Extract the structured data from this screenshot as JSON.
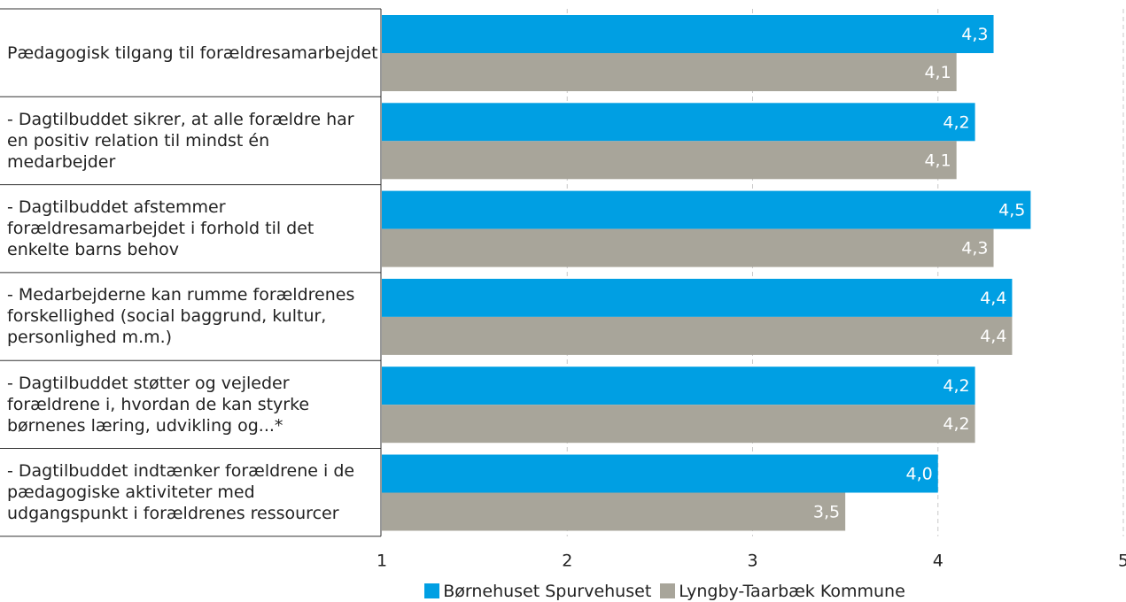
{
  "chart_data": {
    "type": "bar",
    "orientation": "horizontal",
    "categories": [
      "Pædagogisk tilgang til forældresamarbejdet",
      "- Dagtilbuddet sikrer, at alle forældre har en positiv relation til mindst én medarbejder",
      "- Dagtilbuddet afstemmer forældresamarbejdet i forhold til det enkelte barns behov",
      "- Medarbejderne kan rumme forældrenes forskellighed (social baggrund, kultur, personlighed m.m.)",
      "- Dagtilbuddet støtter og vejleder forældrene i, hvordan de kan styrke børnenes læring, udvikling og...*",
      "- Dagtilbuddet indtænker forældrene i de pædagogiske aktiviteter med udgangspunkt i forældrenes ressourcer"
    ],
    "series": [
      {
        "name": "Børnehuset Spurvehuset",
        "color": "#009fe3",
        "values": [
          4.3,
          4.2,
          4.5,
          4.4,
          4.2,
          4.0
        ],
        "value_labels": [
          "4,3",
          "4,2",
          "4,5",
          "4,4",
          "4,2",
          "4,0"
        ]
      },
      {
        "name": "Lyngby-Taarbæk Kommune",
        "color": "#a8a59a",
        "values": [
          4.1,
          4.1,
          4.3,
          4.4,
          4.2,
          3.5
        ],
        "value_labels": [
          "4,1",
          "4,1",
          "4,3",
          "4,4",
          "4,2",
          "3,5"
        ]
      }
    ],
    "xlim": [
      1,
      5
    ],
    "xticks": [
      1,
      2,
      3,
      4,
      5
    ],
    "grid": true,
    "legend": "bottom"
  }
}
